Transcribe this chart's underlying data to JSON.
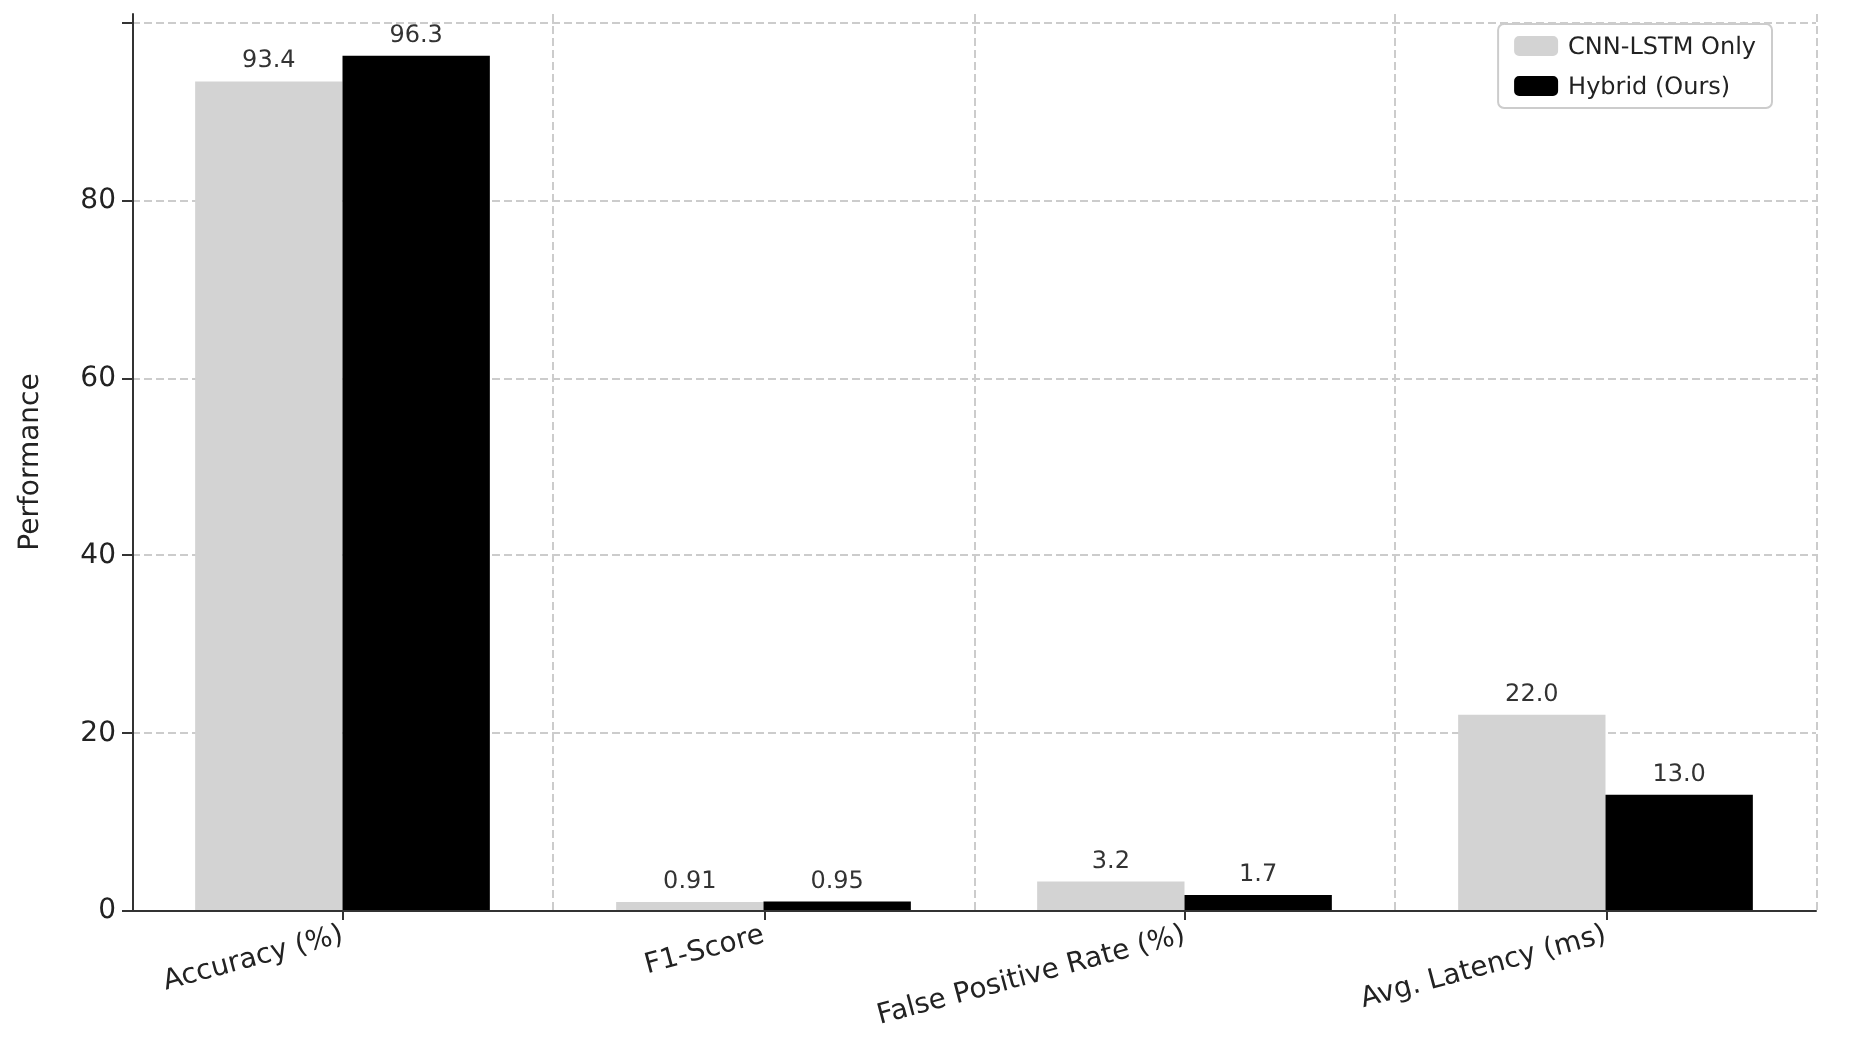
{
  "chart_data": {
    "type": "bar",
    "ylabel": "Performance",
    "categories": [
      "Accuracy (%)",
      "F1-Score",
      "False Positive Rate (%)",
      "Avg. Latency (ms)"
    ],
    "series": [
      {
        "name": "CNN-LSTM Only",
        "color": "#d3d3d3",
        "values": [
          93.4,
          0.91,
          3.2,
          22.0
        ],
        "value_labels": [
          "93.4",
          "0.91",
          "3.2",
          "22.0"
        ]
      },
      {
        "name": "Hybrid (Ours)",
        "color": "#000000",
        "values": [
          96.3,
          0.95,
          1.7,
          13.0
        ],
        "value_labels": [
          "96.3",
          "0.95",
          "1.7",
          "13.0"
        ]
      }
    ],
    "ylim": [
      0,
      101
    ],
    "yticks": [
      0,
      20,
      40,
      60,
      80,
      {
        "value": 100,
        "label": null
      }
    ],
    "grid": true,
    "legend": "top right"
  }
}
